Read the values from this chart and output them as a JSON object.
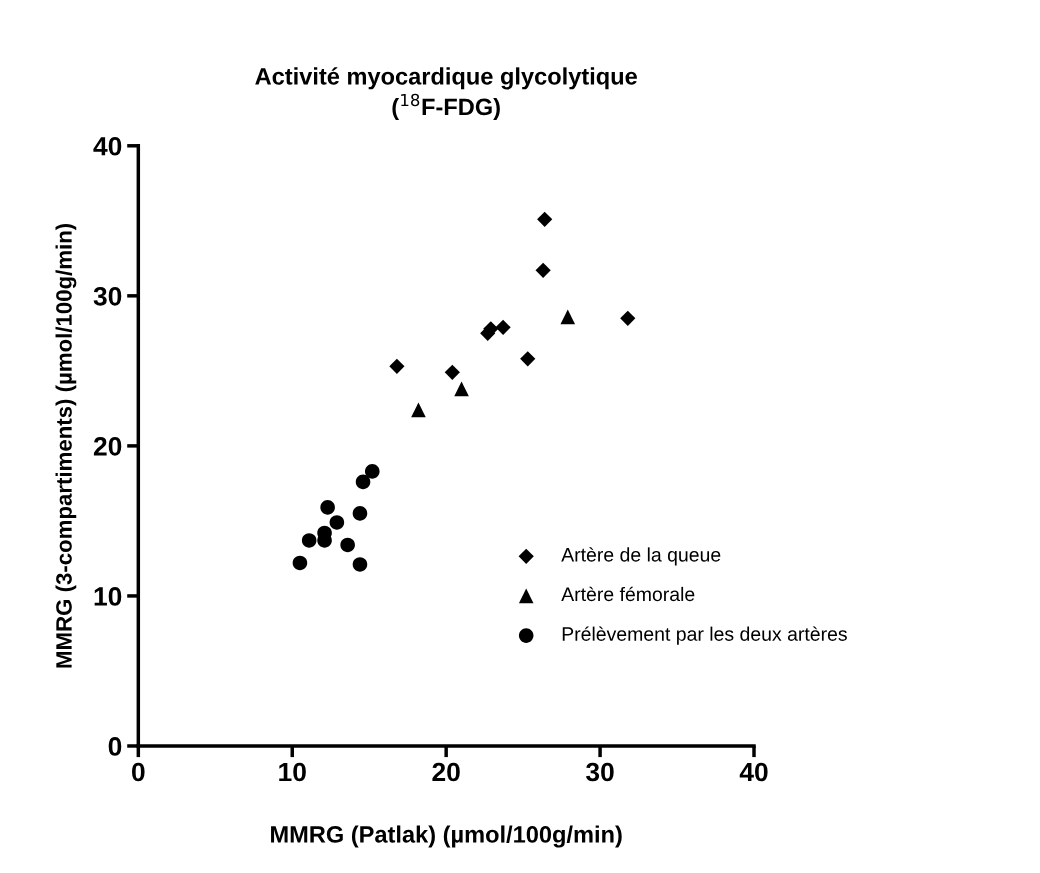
{
  "chart_data": {
    "type": "scatter",
    "title": "Activité myocardique glycolytique\n($^{18}$F-FDG)",
    "xlabel": "MMRG (Patlak) (µmol/100g/min)",
    "ylabel": "MMRG (3-compartiments) (µmol/100g/min)",
    "xlim": [
      0,
      40
    ],
    "ylim": [
      0,
      40
    ],
    "xticks": [
      0,
      10,
      20,
      30,
      40
    ],
    "yticks": [
      0,
      10,
      20,
      30,
      40
    ],
    "grid": false,
    "legend": "right",
    "series": [
      {
        "name": "Artère de la queue",
        "color": "#000000",
        "marker": "diamond",
        "x": [
          26.4,
          26.3,
          31.8,
          22.7,
          22.9,
          23.7,
          25.3,
          16.8,
          20.4
        ],
        "values": [
          35.1,
          31.7,
          28.5,
          27.5,
          27.8,
          27.9,
          25.8,
          25.3,
          24.9
        ]
      },
      {
        "name": "Artère fémorale",
        "color": "#000000",
        "marker": "triangle",
        "x": [
          27.9,
          21.0,
          18.2
        ],
        "values": [
          28.6,
          23.8,
          22.4
        ]
      },
      {
        "name": "Prélèvement par les deux artères",
        "color": "#000000",
        "marker": "circle",
        "x": [
          10.5,
          11.1,
          12.1,
          12.1,
          12.3,
          12.9,
          13.6,
          14.4,
          14.4,
          14.6,
          15.2
        ],
        "values": [
          12.2,
          13.7,
          13.7,
          14.2,
          15.9,
          14.9,
          13.4,
          12.1,
          15.5,
          17.6,
          18.3
        ]
      }
    ]
  }
}
